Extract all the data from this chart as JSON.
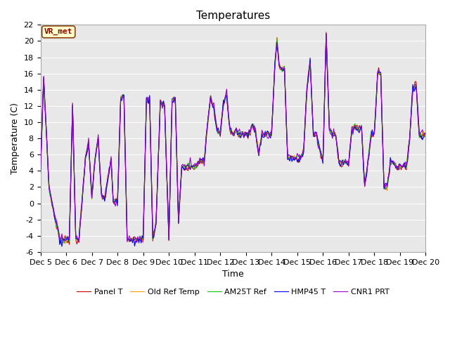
{
  "title": "Temperatures",
  "xlabel": "Time",
  "ylabel": "Temperature (C)",
  "ylim": [
    -6,
    22
  ],
  "xlim": [
    0,
    360
  ],
  "x_tick_labels": [
    "Dec 5",
    "Dec 6",
    "Dec 7",
    "Dec 8",
    "Dec 9",
    "Dec 10",
    "Dec 11",
    "Dec 12",
    "Dec 13",
    "Dec 14",
    "Dec 15",
    "Dec 16",
    "Dec 17",
    "Dec 18",
    "Dec 19",
    "Dec 20"
  ],
  "x_tick_positions": [
    0,
    24,
    48,
    72,
    96,
    120,
    144,
    168,
    192,
    216,
    240,
    264,
    288,
    312,
    336,
    360
  ],
  "series_colors": {
    "Panel T": "#cc0000",
    "Old Ref Temp": "#ff9900",
    "AM25T Ref": "#00cc00",
    "HMP45 T": "#0000ee",
    "CNR1 PRT": "#9900cc"
  },
  "annotation_text": "VR_met",
  "annotation_color": "#8B0000",
  "annotation_bg": "#ffffcc",
  "background_color": "#e8e8e8",
  "grid_color": "#ffffff",
  "title_fontsize": 11,
  "axis_fontsize": 9,
  "tick_fontsize": 8,
  "legend_fontsize": 8,
  "linewidth": 0.8,
  "y_ticks": [
    -6,
    -4,
    -2,
    0,
    2,
    4,
    6,
    8,
    10,
    12,
    14,
    16,
    18,
    20,
    22
  ]
}
